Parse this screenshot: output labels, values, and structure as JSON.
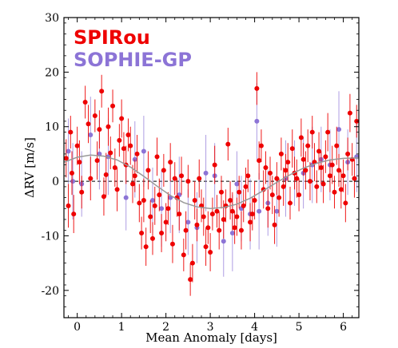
{
  "chart_data": {
    "type": "scatter",
    "title": "",
    "xlabel": "Mean Anomaly [days]",
    "ylabel": "ΔRV [m/s]",
    "xlim": [
      -0.3,
      6.35
    ],
    "ylim": [
      -25,
      30
    ],
    "xticks": [
      "0",
      "1",
      "2",
      "3",
      "4",
      "5",
      "6"
    ],
    "yticks": [
      "-20",
      "-10",
      "0",
      "10",
      "20",
      "30"
    ],
    "grid": false,
    "legend_position": "top-left",
    "zero_line": "dashed",
    "series": [
      {
        "name": "SPIRou",
        "color": "#ee0000",
        "points": [
          [
            -0.25,
            4.2,
            3.5
          ],
          [
            -0.2,
            -4.5,
            4.0
          ],
          [
            -0.15,
            9.0,
            3.0
          ],
          [
            -0.12,
            1.5,
            4.0
          ],
          [
            -0.08,
            -6.0,
            3.5
          ],
          [
            0.0,
            6.5,
            3.5
          ],
          [
            0.05,
            3.5,
            4.0
          ],
          [
            0.1,
            -2.0,
            3.0
          ],
          [
            0.18,
            14.5,
            3.0
          ],
          [
            0.25,
            10.5,
            3.5
          ],
          [
            0.3,
            0.5,
            4.0
          ],
          [
            0.4,
            12.0,
            3.0
          ],
          [
            0.45,
            3.8,
            3.5
          ],
          [
            0.5,
            9.5,
            3.5
          ],
          [
            0.55,
            16.5,
            3.0
          ],
          [
            0.6,
            -2.8,
            3.5
          ],
          [
            0.65,
            1.2,
            4.0
          ],
          [
            0.7,
            10.0,
            3.5
          ],
          [
            0.75,
            5.2,
            3.0
          ],
          [
            0.8,
            13.8,
            3.0
          ],
          [
            0.85,
            2.5,
            3.5
          ],
          [
            0.9,
            -1.5,
            4.0
          ],
          [
            0.95,
            7.5,
            3.0
          ],
          [
            1.0,
            11.5,
            3.5
          ],
          [
            1.05,
            6.0,
            3.0
          ],
          [
            1.1,
            3.0,
            3.5
          ],
          [
            1.15,
            8.5,
            3.0
          ],
          [
            1.2,
            6.5,
            3.5
          ],
          [
            1.25,
            -0.5,
            3.5
          ],
          [
            1.3,
            1.0,
            3.0
          ],
          [
            1.35,
            5.0,
            3.5
          ],
          [
            1.4,
            -4.0,
            3.5
          ],
          [
            1.45,
            -9.5,
            3.0
          ],
          [
            1.5,
            -3.5,
            4.0
          ],
          [
            1.55,
            -12.0,
            3.5
          ],
          [
            1.6,
            2.0,
            3.5
          ],
          [
            1.65,
            -6.5,
            3.0
          ],
          [
            1.7,
            -10.5,
            3.0
          ],
          [
            1.75,
            -4.5,
            3.5
          ],
          [
            1.8,
            4.5,
            3.5
          ],
          [
            1.85,
            -2.5,
            3.0
          ],
          [
            1.9,
            -9.5,
            3.5
          ],
          [
            1.95,
            2.0,
            3.0
          ],
          [
            2.0,
            -7.5,
            3.5
          ],
          [
            2.05,
            -5.0,
            3.0
          ],
          [
            2.1,
            3.5,
            3.5
          ],
          [
            2.15,
            -11.5,
            3.5
          ],
          [
            2.2,
            0.5,
            3.0
          ],
          [
            2.25,
            -3.0,
            3.5
          ],
          [
            2.3,
            -6.0,
            3.0
          ],
          [
            2.35,
            1.0,
            3.5
          ],
          [
            2.4,
            -13.5,
            3.0
          ],
          [
            2.45,
            -9.0,
            3.5
          ],
          [
            2.5,
            0.0,
            3.0
          ],
          [
            2.55,
            -18.0,
            3.0
          ],
          [
            2.6,
            -15.0,
            3.5
          ],
          [
            2.65,
            -3.5,
            3.5
          ],
          [
            2.7,
            -8.0,
            3.0
          ],
          [
            2.75,
            0.5,
            3.5
          ],
          [
            2.8,
            -4.5,
            3.0
          ],
          [
            2.85,
            -6.5,
            3.5
          ],
          [
            2.9,
            -12.0,
            3.5
          ],
          [
            2.95,
            -8.5,
            3.0
          ],
          [
            3.0,
            -13.0,
            3.5
          ],
          [
            3.05,
            -6.0,
            3.0
          ],
          [
            3.1,
            3.0,
            3.5
          ],
          [
            3.15,
            -5.5,
            3.0
          ],
          [
            3.2,
            -9.0,
            3.5
          ],
          [
            3.25,
            -2.0,
            3.0
          ],
          [
            3.3,
            -7.0,
            3.5
          ],
          [
            3.35,
            -4.5,
            3.0
          ],
          [
            3.4,
            6.8,
            3.0
          ],
          [
            3.45,
            -3.5,
            3.5
          ],
          [
            3.5,
            -5.5,
            3.5
          ],
          [
            3.55,
            -8.5,
            3.0
          ],
          [
            3.6,
            -6.5,
            3.5
          ],
          [
            3.65,
            -2.0,
            3.0
          ],
          [
            3.7,
            -9.0,
            3.5
          ],
          [
            3.75,
            -4.5,
            3.0
          ],
          [
            3.8,
            -1.0,
            3.5
          ],
          [
            3.85,
            1.0,
            3.0
          ],
          [
            3.9,
            -7.5,
            3.5
          ],
          [
            3.95,
            -6.0,
            3.0
          ],
          [
            4.0,
            -3.5,
            3.5
          ],
          [
            4.05,
            17.0,
            3.0
          ],
          [
            4.1,
            3.8,
            3.5
          ],
          [
            4.15,
            6.5,
            3.0
          ],
          [
            4.2,
            -1.5,
            3.5
          ],
          [
            4.25,
            2.5,
            3.0
          ],
          [
            4.3,
            -5.0,
            3.5
          ],
          [
            4.35,
            1.5,
            3.0
          ],
          [
            4.4,
            -2.5,
            3.5
          ],
          [
            4.45,
            -8.0,
            3.5
          ],
          [
            4.5,
            0.5,
            3.0
          ],
          [
            4.55,
            -3.0,
            3.5
          ],
          [
            4.6,
            5.0,
            3.0
          ],
          [
            4.65,
            -1.0,
            3.5
          ],
          [
            4.7,
            2.0,
            3.0
          ],
          [
            4.75,
            3.5,
            3.5
          ],
          [
            4.8,
            -4.0,
            3.0
          ],
          [
            4.85,
            6.0,
            3.5
          ],
          [
            4.9,
            1.5,
            3.0
          ],
          [
            4.95,
            0.5,
            3.5
          ],
          [
            5.0,
            -2.5,
            3.0
          ],
          [
            5.05,
            8.0,
            3.5
          ],
          [
            5.1,
            4.0,
            3.0
          ],
          [
            5.15,
            2.0,
            3.5
          ],
          [
            5.2,
            6.5,
            3.0
          ],
          [
            5.25,
            0.0,
            3.5
          ],
          [
            5.3,
            9.0,
            3.0
          ],
          [
            5.35,
            3.5,
            3.5
          ],
          [
            5.4,
            -1.0,
            3.0
          ],
          [
            5.45,
            5.5,
            3.5
          ],
          [
            5.5,
            2.5,
            3.0
          ],
          [
            5.55,
            -0.5,
            3.5
          ],
          [
            5.6,
            4.5,
            3.0
          ],
          [
            5.65,
            9.0,
            3.5
          ],
          [
            5.7,
            1.0,
            3.0
          ],
          [
            5.75,
            3.0,
            3.5
          ],
          [
            5.8,
            -2.0,
            3.0
          ],
          [
            5.85,
            6.5,
            3.5
          ],
          [
            5.9,
            2.0,
            3.0
          ],
          [
            5.95,
            -1.5,
            3.5
          ],
          [
            6.0,
            1.0,
            3.0
          ],
          [
            6.05,
            -4.0,
            3.5
          ],
          [
            6.1,
            5.0,
            3.0
          ],
          [
            6.15,
            12.5,
            3.5
          ],
          [
            6.2,
            4.0,
            3.0
          ],
          [
            6.25,
            0.5,
            3.5
          ],
          [
            6.3,
            11.0,
            3.0
          ]
        ]
      },
      {
        "name": "SOPHIE-GP",
        "color": "#8c74d6",
        "points": [
          [
            -0.2,
            5.5,
            6.0
          ],
          [
            -0.1,
            0.0,
            7.0
          ],
          [
            0.1,
            -0.5,
            6.0
          ],
          [
            0.3,
            8.5,
            7.0
          ],
          [
            0.5,
            5.0,
            6.5
          ],
          [
            0.7,
            4.5,
            7.0
          ],
          [
            1.1,
            -3.0,
            6.0
          ],
          [
            1.3,
            4.0,
            7.0
          ],
          [
            1.5,
            5.5,
            6.5
          ],
          [
            1.7,
            -3.5,
            6.0
          ],
          [
            1.9,
            -5.0,
            7.0
          ],
          [
            2.1,
            -3.0,
            6.5
          ],
          [
            2.3,
            -2.5,
            7.0
          ],
          [
            2.5,
            -7.5,
            6.0
          ],
          [
            2.7,
            -8.5,
            6.5
          ],
          [
            2.9,
            1.5,
            7.0
          ],
          [
            3.1,
            1.0,
            6.0
          ],
          [
            3.3,
            -11.0,
            6.5
          ],
          [
            3.5,
            -9.5,
            7.0
          ],
          [
            3.7,
            -5.0,
            6.0
          ],
          [
            3.9,
            -6.0,
            6.5
          ],
          [
            4.1,
            -5.5,
            7.0
          ],
          [
            4.3,
            -4.0,
            6.0
          ],
          [
            4.5,
            -5.5,
            6.5
          ],
          [
            4.7,
            0.5,
            7.0
          ],
          [
            4.9,
            1.5,
            6.0
          ],
          [
            5.1,
            1.5,
            6.5
          ],
          [
            5.3,
            3.0,
            7.0
          ],
          [
            5.5,
            4.0,
            6.0
          ],
          [
            5.7,
            3.0,
            6.5
          ],
          [
            5.9,
            9.5,
            7.0
          ],
          [
            6.1,
            3.5,
            6.0
          ],
          [
            6.3,
            4.5,
            6.5
          ],
          [
            3.6,
            -0.5,
            6.0
          ],
          [
            4.05,
            11.0,
            7.0
          ]
        ]
      }
    ],
    "model_curve": {
      "color": "#999999",
      "x": [
        -0.3,
        0.0,
        0.3,
        0.6,
        0.9,
        1.2,
        1.5,
        1.8,
        2.1,
        2.4,
        2.7,
        3.0,
        3.3,
        3.6,
        3.9,
        4.2,
        4.5,
        4.8,
        5.1,
        5.4,
        5.7,
        6.0,
        6.35
      ],
      "y": [
        3.5,
        4.4,
        4.8,
        4.6,
        3.9,
        2.6,
        0.9,
        -0.9,
        -2.6,
        -3.9,
        -4.7,
        -5.0,
        -4.8,
        -4.2,
        -3.1,
        -1.7,
        -0.2,
        1.2,
        2.4,
        3.3,
        3.9,
        4.2,
        4.3
      ]
    }
  }
}
